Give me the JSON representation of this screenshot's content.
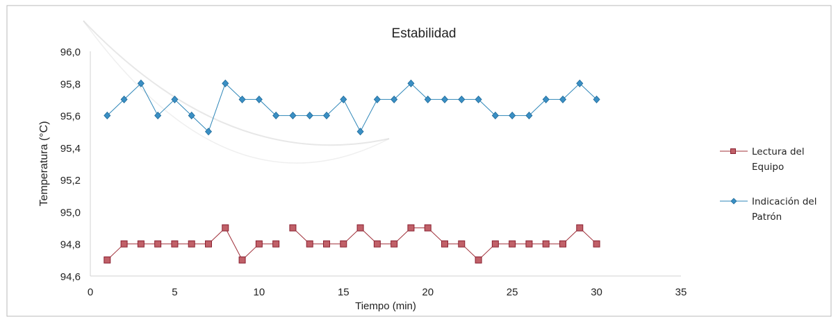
{
  "chart_data": {
    "type": "line",
    "title": "Estabilidad",
    "xlabel": "Tiempo (min)",
    "ylabel": "Temperatura  (°C)",
    "xlim": [
      0,
      35
    ],
    "ylim": [
      94.6,
      96.0
    ],
    "x_ticks": [
      0,
      5,
      10,
      15,
      20,
      25,
      30,
      35
    ],
    "y_ticks": [
      94.6,
      94.8,
      95.0,
      95.2,
      95.4,
      95.6,
      95.8,
      96.0
    ],
    "x_tick_labels": [
      "0",
      "5",
      "10",
      "15",
      "20",
      "25",
      "30",
      "35"
    ],
    "y_tick_labels": [
      "94,6",
      "94,8",
      "95,0",
      "95,2",
      "95,4",
      "95,6",
      "95,8",
      "96,0"
    ],
    "grid": false,
    "legend_position": "right",
    "series": [
      {
        "name_lines": [
          "Lectura del",
          "Equipo"
        ],
        "color": "#a0303a",
        "marker": "square",
        "segments": [
          {
            "x": [
              1,
              2,
              3,
              4,
              5,
              6,
              7,
              8,
              9,
              10,
              11
            ],
            "y": [
              94.7,
              94.8,
              94.8,
              94.8,
              94.8,
              94.8,
              94.8,
              94.9,
              94.7,
              94.8,
              94.8
            ]
          },
          {
            "x": [
              12,
              13,
              14,
              15,
              16,
              17,
              18,
              19,
              20,
              21,
              22,
              23,
              24,
              25,
              26,
              27,
              28,
              29,
              30
            ],
            "y": [
              94.9,
              94.8,
              94.8,
              94.8,
              94.9,
              94.8,
              94.8,
              94.9,
              94.9,
              94.8,
              94.8,
              94.7,
              94.8,
              94.8,
              94.8,
              94.8,
              94.8,
              94.9,
              94.8
            ]
          }
        ]
      },
      {
        "name_lines": [
          "Indicación del",
          "Patrón"
        ],
        "color": "#2e86b8",
        "marker": "diamond",
        "segments": [
          {
            "x": [
              1,
              2,
              3,
              4,
              5,
              6,
              7,
              8,
              9,
              10,
              11,
              12,
              13,
              14,
              15,
              16,
              17,
              18,
              19,
              20,
              21,
              22,
              23,
              24,
              25,
              26,
              27,
              28,
              29,
              30
            ],
            "y": [
              95.6,
              95.7,
              95.8,
              95.6,
              95.7,
              95.6,
              95.5,
              95.8,
              95.7,
              95.7,
              95.6,
              95.6,
              95.6,
              95.6,
              95.7,
              95.5,
              95.7,
              95.7,
              95.8,
              95.7,
              95.7,
              95.7,
              95.7,
              95.6,
              95.6,
              95.6,
              95.7,
              95.7,
              95.8,
              95.7
            ]
          }
        ]
      }
    ]
  }
}
